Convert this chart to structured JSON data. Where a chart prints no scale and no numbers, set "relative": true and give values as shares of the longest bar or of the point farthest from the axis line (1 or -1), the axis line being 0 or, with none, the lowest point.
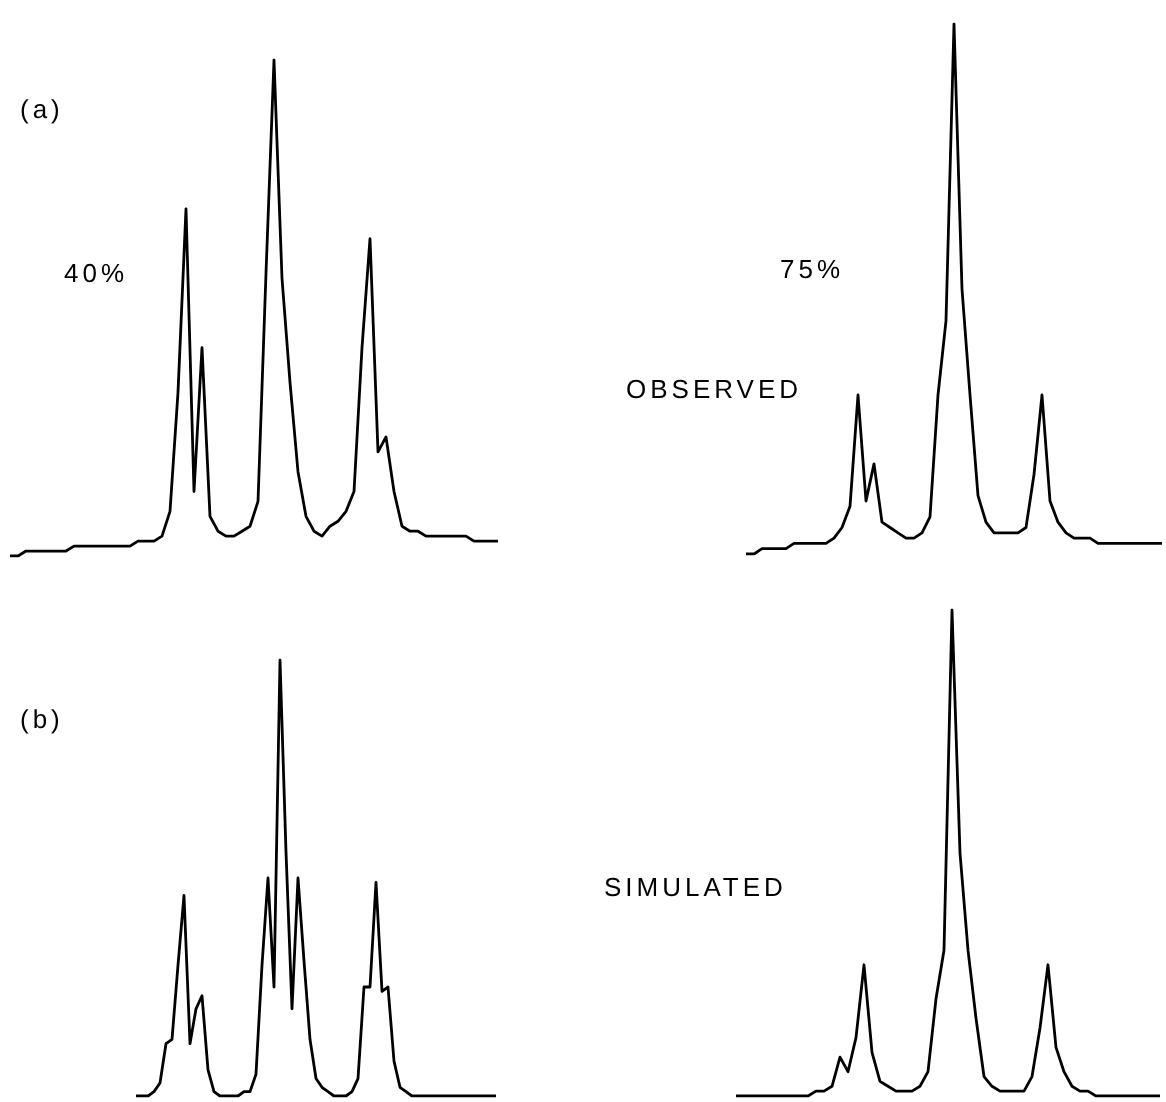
{
  "chart_data": [
    {
      "type": "line",
      "relative": true,
      "tick_labels": false,
      "marker": "none",
      "annotations": [
        "(a)",
        "40%",
        "OBSERVED"
      ],
      "categories": [
        null,
        null,
        null,
        null,
        null,
        null,
        null,
        null,
        null,
        null,
        null,
        null,
        null,
        null,
        null,
        null,
        null,
        null,
        null,
        null,
        null,
        null,
        null,
        null,
        null,
        null,
        null,
        null,
        null,
        null,
        null,
        null,
        null,
        null,
        null,
        null,
        null,
        null,
        null,
        null,
        null,
        null,
        null,
        null,
        null,
        null,
        null,
        null,
        null,
        null,
        null,
        null,
        null,
        null,
        null,
        null,
        null,
        null,
        null,
        null,
        null,
        null
      ],
      "series": [
        {
          "color": "#000000",
          "values": [
            0,
            0,
            0.01,
            0.01,
            0.01,
            0.01,
            0.01,
            0.01,
            0.02,
            0.02,
            0.02,
            0.02,
            0.02,
            0.02,
            0.02,
            0.02,
            0.03,
            0.03,
            0.03,
            0.04,
            0.09,
            0.33,
            0.7,
            0.13,
            0.42,
            0.08,
            0.05,
            0.04,
            0.04,
            0.05,
            0.06,
            0.11,
            0.57,
            1,
            0.56,
            0.35,
            0.17,
            0.08,
            0.05,
            0.04,
            0.06,
            0.07,
            0.09,
            0.13,
            0.42,
            0.64,
            0.21,
            0.24,
            0.13,
            0.06,
            0.05,
            0.05,
            0.04,
            0.04,
            0.04,
            0.04,
            0.04,
            0.04,
            0.03,
            0.03,
            0.03,
            0.03
          ]
        }
      ]
    },
    {
      "type": "line",
      "relative": true,
      "tick_labels": false,
      "marker": "none",
      "annotations": [
        "75%"
      ],
      "categories": [
        null,
        null,
        null,
        null,
        null,
        null,
        null,
        null,
        null,
        null,
        null,
        null,
        null,
        null,
        null,
        null,
        null,
        null,
        null,
        null,
        null,
        null,
        null,
        null,
        null,
        null,
        null,
        null,
        null,
        null,
        null,
        null,
        null,
        null,
        null,
        null,
        null,
        null,
        null,
        null,
        null,
        null,
        null,
        null,
        null,
        null,
        null,
        null,
        null,
        null,
        null,
        null,
        null
      ],
      "series": [
        {
          "color": "#000000",
          "values": [
            0,
            0,
            0.01,
            0.01,
            0.01,
            0.01,
            0.02,
            0.02,
            0.02,
            0.02,
            0.02,
            0.03,
            0.05,
            0.09,
            0.3,
            0.1,
            0.17,
            0.06,
            0.05,
            0.04,
            0.03,
            0.03,
            0.04,
            0.07,
            0.3,
            0.44,
            1,
            0.5,
            0.3,
            0.11,
            0.06,
            0.04,
            0.04,
            0.04,
            0.04,
            0.05,
            0.15,
            0.3,
            0.1,
            0.06,
            0.04,
            0.03,
            0.03,
            0.03,
            0.02,
            0.02,
            0.02,
            0.02,
            0.02,
            0.02,
            0.02,
            0.02,
            0.02
          ]
        }
      ]
    },
    {
      "type": "line",
      "relative": true,
      "tick_labels": false,
      "marker": "none",
      "annotations": [
        "(b)",
        "SIMULATED"
      ],
      "categories": [
        null,
        null,
        null,
        null,
        null,
        null,
        null,
        null,
        null,
        null,
        null,
        null,
        null,
        null,
        null,
        null,
        null,
        null,
        null,
        null,
        null,
        null,
        null,
        null,
        null,
        null,
        null,
        null,
        null,
        null,
        null,
        null,
        null,
        null,
        null,
        null,
        null,
        null,
        null,
        null,
        null,
        null,
        null,
        null,
        null,
        null,
        null,
        null,
        null,
        null,
        null,
        null,
        null,
        null,
        null,
        null,
        null,
        null,
        null,
        null,
        null
      ],
      "series": [
        {
          "color": "#000000",
          "values": [
            0,
            0,
            0,
            0.01,
            0.03,
            0.12,
            0.13,
            0.3,
            0.46,
            0.12,
            0.2,
            0.23,
            0.06,
            0.01,
            0,
            0,
            0,
            0,
            0.01,
            0.01,
            0.05,
            0.3,
            0.5,
            0.25,
            1,
            0.56,
            0.2,
            0.5,
            0.31,
            0.13,
            0.04,
            0.02,
            0.01,
            0,
            0,
            0,
            0.01,
            0.04,
            0.25,
            0.25,
            0.49,
            0.24,
            0.25,
            0.08,
            0.02,
            0.01,
            0,
            0,
            0,
            0,
            0,
            0,
            0,
            0,
            0,
            0,
            0,
            0,
            0,
            0,
            0
          ]
        }
      ]
    },
    {
      "type": "line",
      "relative": true,
      "tick_labels": false,
      "marker": "none",
      "categories": [
        null,
        null,
        null,
        null,
        null,
        null,
        null,
        null,
        null,
        null,
        null,
        null,
        null,
        null,
        null,
        null,
        null,
        null,
        null,
        null,
        null,
        null,
        null,
        null,
        null,
        null,
        null,
        null,
        null,
        null,
        null,
        null,
        null,
        null,
        null,
        null,
        null,
        null,
        null,
        null,
        null,
        null,
        null,
        null,
        null,
        null,
        null,
        null,
        null,
        null,
        null,
        null,
        null,
        null
      ],
      "series": [
        {
          "color": "#000000",
          "values": [
            0,
            0,
            0,
            0,
            0,
            0,
            0,
            0,
            0,
            0,
            0.01,
            0.01,
            0.02,
            0.08,
            0.05,
            0.12,
            0.27,
            0.09,
            0.03,
            0.02,
            0.01,
            0.01,
            0.01,
            0.02,
            0.05,
            0.2,
            0.3,
            1,
            0.5,
            0.3,
            0.16,
            0.04,
            0.02,
            0.01,
            0.01,
            0.01,
            0.01,
            0.04,
            0.14,
            0.27,
            0.1,
            0.05,
            0.02,
            0.01,
            0.01,
            0,
            0,
            0,
            0,
            0,
            0,
            0,
            0,
            0
          ]
        }
      ]
    }
  ]
}
